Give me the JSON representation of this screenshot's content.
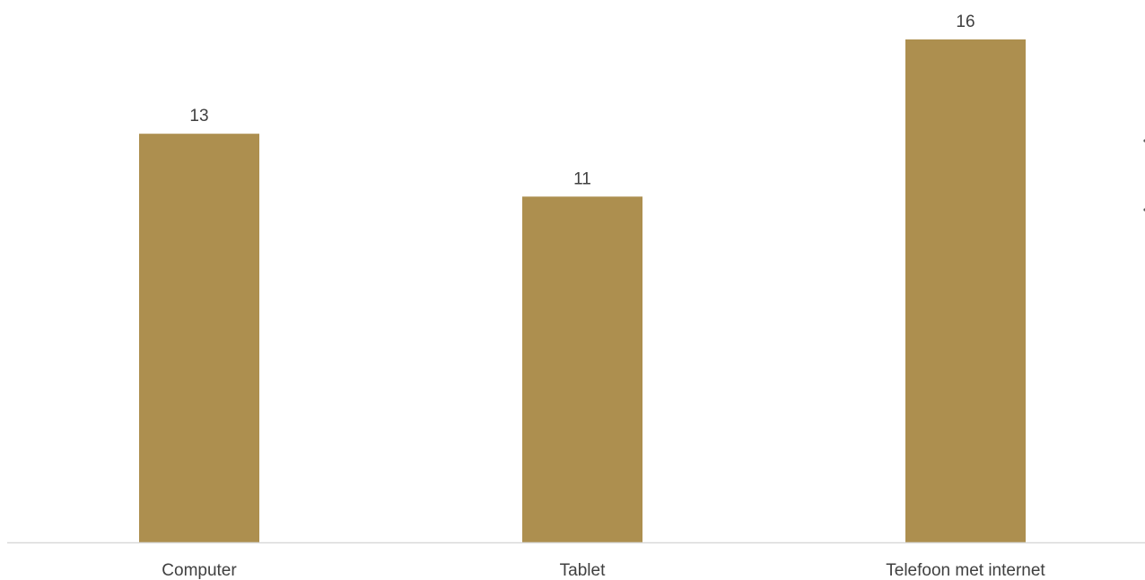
{
  "chart_data": {
    "type": "bar",
    "categories": [
      "Computer",
      "Tablet",
      "Telefoon met internet"
    ],
    "values": [
      13,
      11,
      16
    ],
    "data_labels": [
      "13",
      "11",
      "16"
    ],
    "ylim": [
      0,
      16
    ],
    "grid": false,
    "legend": "none",
    "colors": {
      "bar": "#AD8F4F",
      "axis": "#D9D9D9",
      "text": "#404040"
    }
  }
}
